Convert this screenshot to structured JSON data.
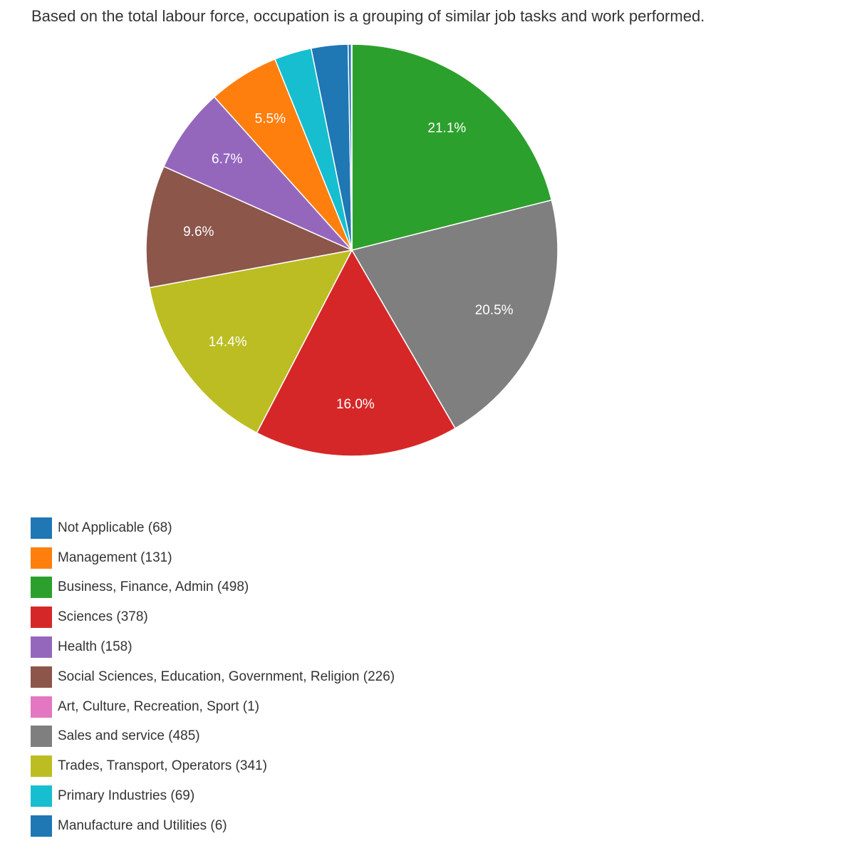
{
  "caption": "Based on the total labour force, occupation is a grouping of similar job tasks and work performed.",
  "chart_data": {
    "type": "pie",
    "title": "",
    "value_format": "percent, 1 decimal",
    "slice_order": [
      "Business, Finance, Admin",
      "Sales and service",
      "Sciences",
      "Trades, Transport, Operators",
      "Social Sciences, Education, Government, Religion",
      "Health",
      "Management",
      "Primary Industries",
      "Not Applicable",
      "Manufacture and Utilities",
      "Art, Culture, Recreation, Sport"
    ],
    "slices": [
      {
        "name": "Not Applicable",
        "value": 68,
        "label": "Not Applicable (68)",
        "color": "#1f77b4"
      },
      {
        "name": "Management",
        "value": 131,
        "label": "Management (131)",
        "color": "#ff7f0e"
      },
      {
        "name": "Business, Finance, Admin",
        "value": 498,
        "label": "Business, Finance, Admin (498)",
        "color": "#2ca02c"
      },
      {
        "name": "Sciences",
        "value": 378,
        "label": "Sciences (378)",
        "color": "#d62728"
      },
      {
        "name": "Health",
        "value": 158,
        "label": "Health (158)",
        "color": "#9467bd"
      },
      {
        "name": "Social Sciences, Education, Government, Religion",
        "value": 226,
        "label": "Social Sciences, Education, Government, Religion (226)",
        "color": "#8c564b"
      },
      {
        "name": "Art, Culture, Recreation, Sport",
        "value": 1,
        "label": "Art, Culture, Recreation, Sport (1)",
        "color": "#e377c2"
      },
      {
        "name": "Sales and service",
        "value": 485,
        "label": "Sales and service (485)",
        "color": "#7f7f7f"
      },
      {
        "name": "Trades, Transport, Operators",
        "value": 341,
        "label": "Trades, Transport, Operators (341)",
        "color": "#bcbd22"
      },
      {
        "name": "Primary Industries",
        "value": 69,
        "label": "Primary Industries (69)",
        "color": "#17becf"
      },
      {
        "name": "Manufacture and Utilities",
        "value": 6,
        "label": "Manufacture and Utilities (6)",
        "color": "#1f77b4"
      }
    ],
    "min_percent_for_label": 5,
    "legend": "bottom-left"
  }
}
